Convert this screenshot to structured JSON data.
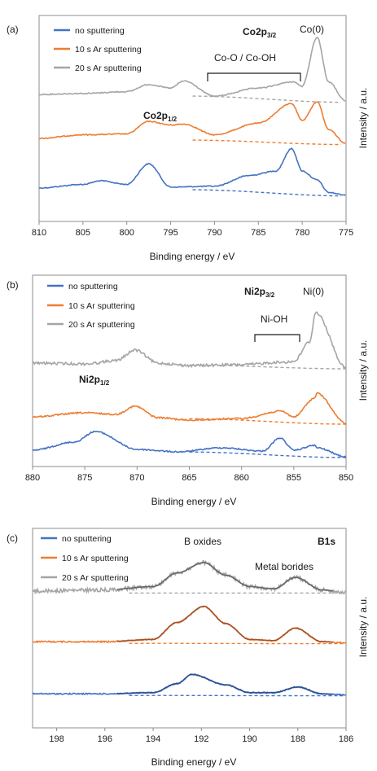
{
  "panels": [
    {
      "id": "a",
      "panel_label": "(a)",
      "xlabel": "Binding energy / eV",
      "ylabel": "Intensity / a.u.",
      "ticks": [
        "810",
        "805",
        "800",
        "795",
        "790",
        "785",
        "780",
        "775"
      ],
      "legend": [
        "no sputtering",
        "10 s Ar sputtering",
        "20 s Ar sputtering"
      ],
      "ann": {
        "main_peak_base": "Co2p",
        "main_peak_sub": "3/2",
        "metal": "Co(0)",
        "oxide": "Co-O / Co-OH",
        "sat_peak_base": "Co2p",
        "sat_peak_sub": "1/2"
      }
    },
    {
      "id": "b",
      "panel_label": "(b)",
      "xlabel": "Binding energy / eV",
      "ylabel": "Intensity / a.u.",
      "ticks": [
        "880",
        "875",
        "870",
        "865",
        "860",
        "855",
        "850"
      ],
      "legend": [
        "no sputtering",
        "10 s Ar sputtering",
        "20 s Ar sputtering"
      ],
      "ann": {
        "main_peak_base": "Ni2p",
        "main_peak_sub": "3/2",
        "metal": "Ni(0)",
        "oxide": "Ni-OH",
        "sat_peak_base": "Ni2p",
        "sat_peak_sub": "1/2"
      }
    },
    {
      "id": "c",
      "panel_label": "(c)",
      "xlabel": "Binding energy / eV",
      "ylabel": "Intensity / a.u.",
      "ticks": [
        "198",
        "196",
        "194",
        "192",
        "190",
        "188",
        "186"
      ],
      "legend": [
        "no sputtering",
        "10 s Ar sputtering",
        "20 s Ar sputtering"
      ],
      "ann": {
        "title": "B1s",
        "oxides": "B oxides",
        "borides": "Metal borides"
      }
    }
  ],
  "colors": {
    "no_sputtering": "#4472c4",
    "ar10": "#ed7d31",
    "ar20": "#a5a5a5",
    "fit_blue": "#2f4f8f",
    "fit_orange": "#a0522d",
    "fit_gray": "#666666"
  },
  "chart_data": [
    {
      "type": "line",
      "title": "",
      "xlabel": "Binding energy / eV",
      "ylabel": "Intensity / a.u.",
      "xlim": [
        810,
        775
      ],
      "x_reversed": true,
      "series": [
        {
          "name": "no sputtering",
          "x": [
            810,
            805,
            803,
            800,
            797.5,
            795,
            790,
            786,
            783,
            781.2,
            780,
            778.3,
            777,
            775
          ],
          "y": [
            1.1,
            1.5,
            1.9,
            1.5,
            3.8,
            1.2,
            1.3,
            2.5,
            3.0,
            5.5,
            3.0,
            2.0,
            0.6,
            0.3
          ]
        },
        {
          "name": "10 s Ar sputtering",
          "x": [
            810,
            805,
            800,
            797.5,
            795,
            793.5,
            790,
            785,
            781.2,
            780,
            778.3,
            777,
            775
          ],
          "y": [
            1.0,
            1.4,
            1.5,
            2.9,
            2.5,
            2.6,
            1.4,
            2.7,
            4.9,
            3.0,
            5.1,
            2.0,
            0.4
          ]
        },
        {
          "name": "20 s Ar sputtering",
          "x": [
            810,
            805,
            800,
            797.5,
            795,
            793.5,
            790,
            785,
            781,
            780,
            778.3,
            777,
            775
          ],
          "y": [
            1.1,
            1.2,
            1.4,
            2.2,
            1.8,
            2.6,
            0.9,
            1.8,
            2.5,
            2.0,
            7.5,
            2.5,
            0.3
          ]
        }
      ]
    },
    {
      "type": "line",
      "title": "",
      "xlabel": "Binding energy / eV",
      "ylabel": "Intensity / a.u.",
      "xlim": [
        880,
        850
      ],
      "x_reversed": true,
      "series": [
        {
          "name": "no sputtering",
          "x": [
            880,
            876,
            874,
            870,
            866,
            862,
            858,
            856.3,
            855,
            853,
            852.8,
            850
          ],
          "y": [
            1.2,
            2.2,
            3.5,
            1.3,
            1.0,
            1.5,
            1.1,
            2.7,
            1.2,
            1.8,
            1.5,
            0.4
          ]
        },
        {
          "name": "10 s Ar sputtering",
          "x": [
            880,
            875,
            872,
            870.2,
            868,
            865,
            860,
            856.2,
            855,
            853,
            852.8,
            850
          ],
          "y": [
            1.3,
            1.8,
            1.6,
            2.6,
            1.2,
            0.9,
            1.1,
            2.0,
            1.3,
            3.6,
            4.2,
            0.5
          ]
        },
        {
          "name": "20 s Ar sputtering",
          "x": [
            880,
            875,
            872,
            870.2,
            868,
            865,
            860,
            856.3,
            855,
            853.5,
            852.9,
            850
          ],
          "y": [
            1.4,
            1.3,
            1.7,
            3.0,
            1.4,
            1.1,
            1.2,
            1.5,
            1.6,
            4.0,
            7.6,
            0.8
          ]
        }
      ]
    },
    {
      "type": "line",
      "title": "B1s",
      "xlabel": "Binding energy / eV",
      "ylabel": "Intensity / a.u.",
      "xlim": [
        199,
        186
      ],
      "x_reversed": true,
      "series": [
        {
          "name": "no sputtering",
          "x": [
            199,
            196,
            194,
            193,
            192.4,
            191,
            190,
            189,
            188,
            187,
            186
          ],
          "y": [
            0.7,
            0.7,
            0.8,
            1.6,
            2.4,
            1.5,
            0.8,
            0.8,
            1.3,
            0.7,
            0.6
          ]
        },
        {
          "name": "10 s Ar sputtering",
          "x": [
            199,
            196,
            194,
            193,
            191.9,
            191,
            190,
            189,
            188.1,
            187,
            186
          ],
          "y": [
            0.7,
            0.7,
            0.9,
            2.4,
            3.8,
            2.3,
            0.9,
            0.8,
            1.9,
            0.7,
            0.6
          ]
        },
        {
          "name": "20 s Ar sputtering",
          "x": [
            199,
            196,
            194,
            193,
            191.9,
            191,
            190,
            189,
            188.1,
            187,
            186
          ],
          "y": [
            1.0,
            1.1,
            1.4,
            2.6,
            3.5,
            2.4,
            1.4,
            1.2,
            2.2,
            1.1,
            0.9
          ]
        }
      ]
    }
  ]
}
